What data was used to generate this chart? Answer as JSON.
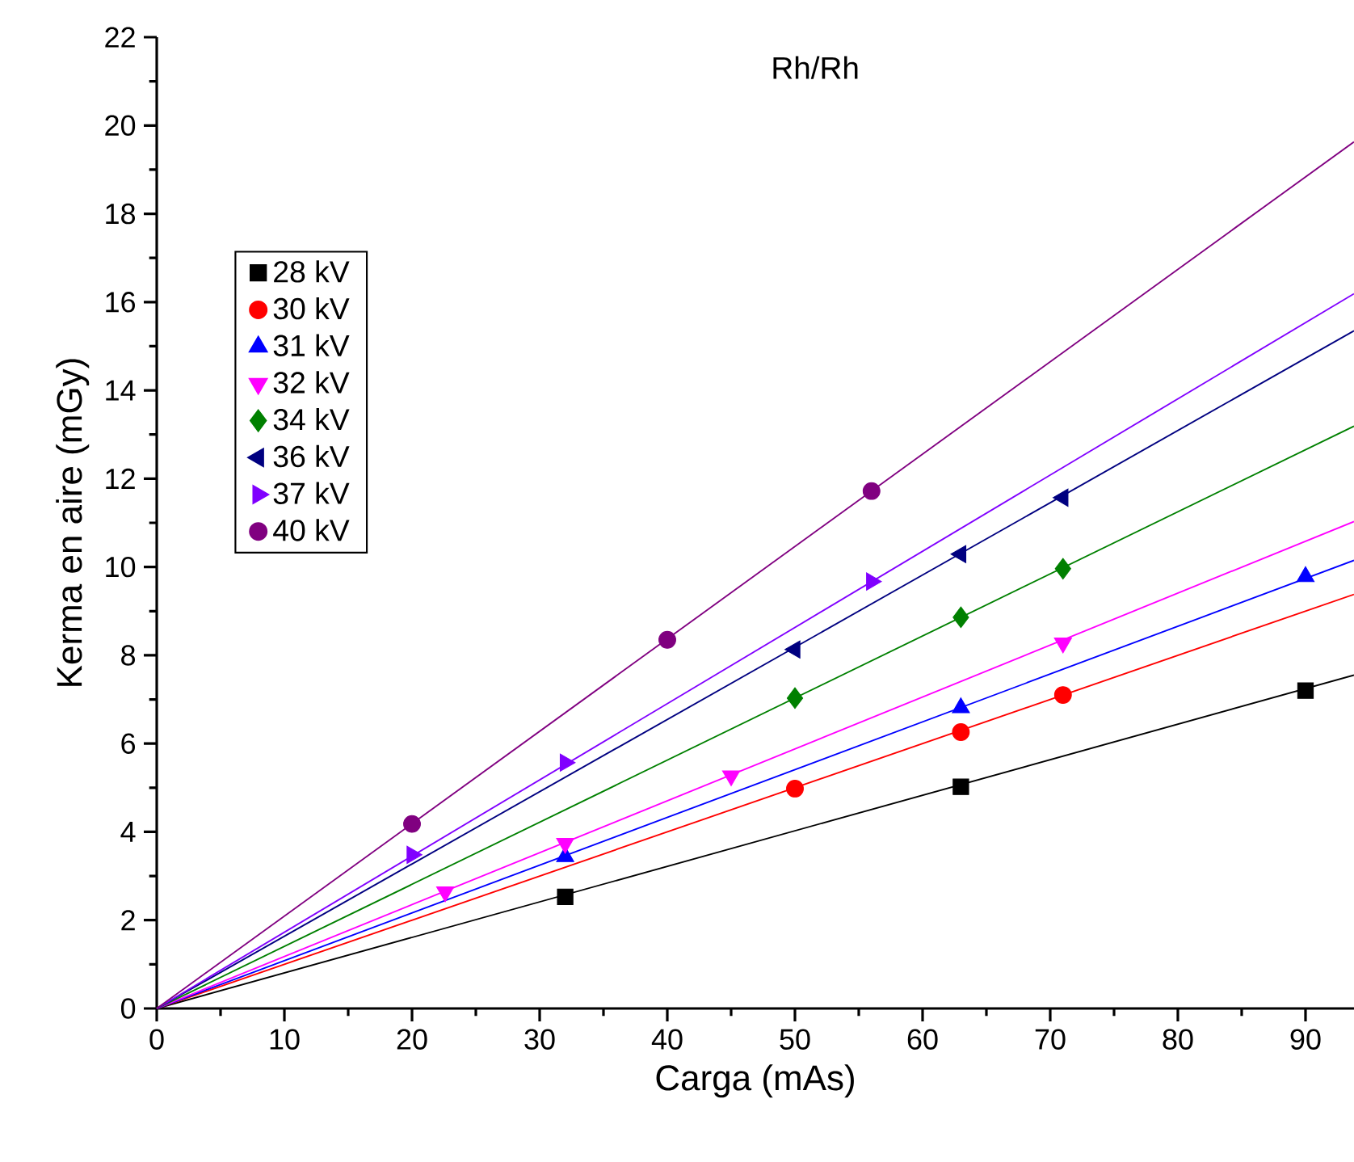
{
  "chart_data": {
    "type": "scatter",
    "title": "Rh/Rh",
    "xlabel": "Carga (mAs)",
    "ylabel": "Kerma en aire (mGy)",
    "xlim": [
      0,
      93.8
    ],
    "ylim": [
      0,
      22
    ],
    "xticks": [
      0,
      10,
      20,
      30,
      40,
      50,
      60,
      70,
      80,
      90
    ],
    "yticks": [
      0,
      2,
      4,
      6,
      8,
      10,
      12,
      14,
      16,
      18,
      20,
      22
    ],
    "legend": "top left",
    "grid": false,
    "series": [
      {
        "name": "28 kV",
        "color": "#000000",
        "marker": "square",
        "x": [
          32,
          63,
          90
        ],
        "values": [
          2.53,
          5.02,
          7.2
        ]
      },
      {
        "name": "30 kV",
        "color": "#ff0000",
        "marker": "circle",
        "x": [
          50,
          63,
          71
        ],
        "values": [
          4.98,
          6.26,
          7.1
        ]
      },
      {
        "name": "31 kV",
        "color": "#0000ff",
        "marker": "triangle",
        "x": [
          32,
          63,
          90
        ],
        "values": [
          3.44,
          6.81,
          9.78
        ]
      },
      {
        "name": "32 kV",
        "color": "#ff00ff",
        "marker": "triangle-down",
        "x": [
          22.6,
          32,
          45,
          71
        ],
        "values": [
          2.64,
          3.74,
          5.27,
          8.28
        ]
      },
      {
        "name": "34 kV",
        "color": "#008000",
        "marker": "diamond",
        "x": [
          50,
          63,
          71
        ],
        "values": [
          7.03,
          8.86,
          9.96
        ]
      },
      {
        "name": "36 kV",
        "color": "#000080",
        "marker": "triangle-left",
        "x": [
          50,
          63,
          71
        ],
        "values": [
          8.13,
          10.29,
          11.57
        ]
      },
      {
        "name": "37 kV",
        "color": "#8000ff",
        "marker": "triangle-right",
        "x": [
          20,
          32,
          56
        ],
        "values": [
          3.48,
          5.57,
          9.67
        ]
      },
      {
        "name": "40 kV",
        "color": "#800080",
        "marker": "circle",
        "x": [
          20,
          40,
          56
        ],
        "values": [
          4.18,
          8.35,
          11.72
        ]
      },
      {
        "type": "line",
        "color": "#000000",
        "x": [
          0,
          93.8
        ],
        "values": [
          0,
          7.55
        ]
      },
      {
        "type": "line",
        "color": "#ff0000",
        "x": [
          0,
          93.8
        ],
        "values": [
          0,
          9.38
        ]
      },
      {
        "type": "line",
        "color": "#0000ff",
        "x": [
          0,
          93.8
        ],
        "values": [
          0,
          10.15
        ]
      },
      {
        "type": "line",
        "color": "#ff00ff",
        "x": [
          0,
          93.8
        ],
        "values": [
          0,
          11.03
        ]
      },
      {
        "type": "line",
        "color": "#008000",
        "x": [
          0,
          93.8
        ],
        "values": [
          0,
          13.19
        ]
      },
      {
        "type": "line",
        "color": "#000080",
        "x": [
          0,
          93.8
        ],
        "values": [
          0,
          15.35
        ]
      },
      {
        "type": "line",
        "color": "#8000ff",
        "x": [
          0,
          93.8
        ],
        "values": [
          0,
          16.19
        ]
      },
      {
        "type": "line",
        "color": "#800080",
        "x": [
          0,
          93.8
        ],
        "values": [
          0,
          19.63
        ]
      }
    ]
  }
}
